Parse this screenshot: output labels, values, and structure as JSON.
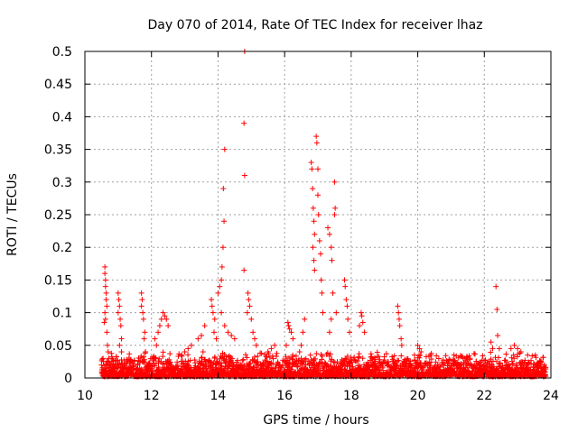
{
  "chart_data": {
    "type": "scatter",
    "title": "Day 070 of 2014, Rate Of TEC Index for receiver lhaz",
    "xlabel": "GPS time / hours",
    "ylabel": "ROTI / TECUs",
    "xlim": [
      10,
      24
    ],
    "ylim": [
      0,
      0.5
    ],
    "xticks": [
      "10",
      "12",
      "14",
      "16",
      "18",
      "20",
      "22",
      "24"
    ],
    "yticks": [
      "0",
      "0.05",
      "0.1",
      "0.15",
      "0.2",
      "0.25",
      "0.3",
      "0.35",
      "0.4",
      "0.45",
      "0.5"
    ],
    "grid": true,
    "marker": "+",
    "color": "#ff0000",
    "series": [
      {
        "name": "ROTI",
        "points": [
          [
            10.6,
            0.17
          ],
          [
            10.6,
            0.16
          ],
          [
            10.62,
            0.15
          ],
          [
            10.62,
            0.14
          ],
          [
            10.64,
            0.13
          ],
          [
            10.64,
            0.12
          ],
          [
            10.66,
            0.11
          ],
          [
            10.6,
            0.1
          ],
          [
            10.62,
            0.09
          ],
          [
            10.58,
            0.085
          ],
          [
            10.66,
            0.07
          ],
          [
            10.68,
            0.05
          ],
          [
            10.7,
            0.04
          ],
          [
            10.72,
            0.03
          ],
          [
            11.0,
            0.13
          ],
          [
            11.02,
            0.12
          ],
          [
            11.04,
            0.11
          ],
          [
            11.0,
            0.1
          ],
          [
            11.06,
            0.09
          ],
          [
            11.08,
            0.08
          ],
          [
            11.1,
            0.06
          ],
          [
            11.04,
            0.05
          ],
          [
            11.1,
            0.04
          ],
          [
            11.7,
            0.13
          ],
          [
            11.72,
            0.12
          ],
          [
            11.7,
            0.11
          ],
          [
            11.74,
            0.1
          ],
          [
            11.76,
            0.09
          ],
          [
            11.8,
            0.07
          ],
          [
            11.78,
            0.06
          ],
          [
            11.82,
            0.04
          ],
          [
            12.2,
            0.07
          ],
          [
            12.25,
            0.08
          ],
          [
            12.3,
            0.09
          ],
          [
            12.35,
            0.1
          ],
          [
            12.4,
            0.095
          ],
          [
            12.45,
            0.09
          ],
          [
            12.5,
            0.08
          ],
          [
            12.1,
            0.06
          ],
          [
            12.15,
            0.05
          ],
          [
            13.0,
            0.04
          ],
          [
            13.1,
            0.045
          ],
          [
            13.2,
            0.05
          ],
          [
            12.9,
            0.035
          ],
          [
            13.4,
            0.06
          ],
          [
            13.5,
            0.065
          ],
          [
            13.6,
            0.08
          ],
          [
            13.55,
            0.04
          ],
          [
            13.8,
            0.12
          ],
          [
            13.82,
            0.11
          ],
          [
            13.85,
            0.1
          ],
          [
            13.9,
            0.09
          ],
          [
            13.88,
            0.07
          ],
          [
            13.95,
            0.06
          ],
          [
            14.0,
            0.13
          ],
          [
            14.05,
            0.14
          ],
          [
            14.1,
            0.15
          ],
          [
            14.12,
            0.17
          ],
          [
            14.15,
            0.2
          ],
          [
            14.18,
            0.24
          ],
          [
            14.16,
            0.29
          ],
          [
            14.2,
            0.35
          ],
          [
            14.1,
            0.1
          ],
          [
            14.2,
            0.08
          ],
          [
            14.3,
            0.07
          ],
          [
            14.4,
            0.065
          ],
          [
            14.5,
            0.06
          ],
          [
            14.8,
            0.5
          ],
          [
            14.78,
            0.39
          ],
          [
            14.8,
            0.31
          ],
          [
            14.78,
            0.165
          ],
          [
            14.9,
            0.13
          ],
          [
            14.92,
            0.12
          ],
          [
            14.95,
            0.11
          ],
          [
            14.88,
            0.1
          ],
          [
            15.0,
            0.09
          ],
          [
            15.05,
            0.07
          ],
          [
            15.1,
            0.06
          ],
          [
            15.15,
            0.05
          ],
          [
            15.5,
            0.04
          ],
          [
            15.6,
            0.045
          ],
          [
            15.7,
            0.05
          ],
          [
            16.1,
            0.085
          ],
          [
            16.12,
            0.08
          ],
          [
            16.15,
            0.075
          ],
          [
            16.2,
            0.07
          ],
          [
            16.25,
            0.06
          ],
          [
            16.05,
            0.05
          ],
          [
            16.6,
            0.09
          ],
          [
            16.55,
            0.07
          ],
          [
            16.5,
            0.05
          ],
          [
            16.45,
            0.04
          ],
          [
            16.8,
            0.33
          ],
          [
            16.82,
            0.32
          ],
          [
            16.84,
            0.29
          ],
          [
            16.86,
            0.26
          ],
          [
            16.88,
            0.24
          ],
          [
            16.9,
            0.22
          ],
          [
            16.85,
            0.2
          ],
          [
            16.88,
            0.18
          ],
          [
            16.9,
            0.165
          ],
          [
            16.95,
            0.37
          ],
          [
            16.97,
            0.36
          ],
          [
            17.0,
            0.32
          ],
          [
            17.0,
            0.28
          ],
          [
            17.02,
            0.25
          ],
          [
            17.05,
            0.21
          ],
          [
            17.08,
            0.19
          ],
          [
            17.1,
            0.15
          ],
          [
            17.12,
            0.13
          ],
          [
            17.15,
            0.1
          ],
          [
            17.3,
            0.23
          ],
          [
            17.35,
            0.22
          ],
          [
            17.4,
            0.2
          ],
          [
            17.42,
            0.18
          ],
          [
            17.5,
            0.3
          ],
          [
            17.52,
            0.26
          ],
          [
            17.5,
            0.25
          ],
          [
            17.45,
            0.13
          ],
          [
            17.55,
            0.1
          ],
          [
            17.4,
            0.09
          ],
          [
            17.35,
            0.07
          ],
          [
            17.8,
            0.15
          ],
          [
            17.82,
            0.14
          ],
          [
            17.85,
            0.12
          ],
          [
            17.88,
            0.11
          ],
          [
            17.9,
            0.09
          ],
          [
            17.95,
            0.07
          ],
          [
            18.3,
            0.1
          ],
          [
            18.32,
            0.095
          ],
          [
            18.35,
            0.085
          ],
          [
            18.25,
            0.08
          ],
          [
            18.4,
            0.07
          ],
          [
            19.4,
            0.11
          ],
          [
            19.42,
            0.1
          ],
          [
            19.44,
            0.09
          ],
          [
            19.46,
            0.08
          ],
          [
            19.5,
            0.06
          ],
          [
            19.52,
            0.05
          ],
          [
            20.0,
            0.05
          ],
          [
            20.05,
            0.045
          ],
          [
            20.1,
            0.04
          ],
          [
            19.9,
            0.035
          ],
          [
            22.2,
            0.055
          ],
          [
            22.25,
            0.045
          ],
          [
            22.35,
            0.14
          ],
          [
            22.38,
            0.105
          ],
          [
            22.4,
            0.065
          ],
          [
            22.45,
            0.045
          ],
          [
            22.8,
            0.045
          ],
          [
            22.9,
            0.05
          ],
          [
            23.0,
            0.045
          ],
          [
            23.1,
            0.04
          ],
          [
            23.3,
            0.035
          ]
        ]
      }
    ],
    "baseline_band": {
      "description_range": [
        10.5,
        23.85
      ],
      "typical_max": 0.03
    }
  }
}
